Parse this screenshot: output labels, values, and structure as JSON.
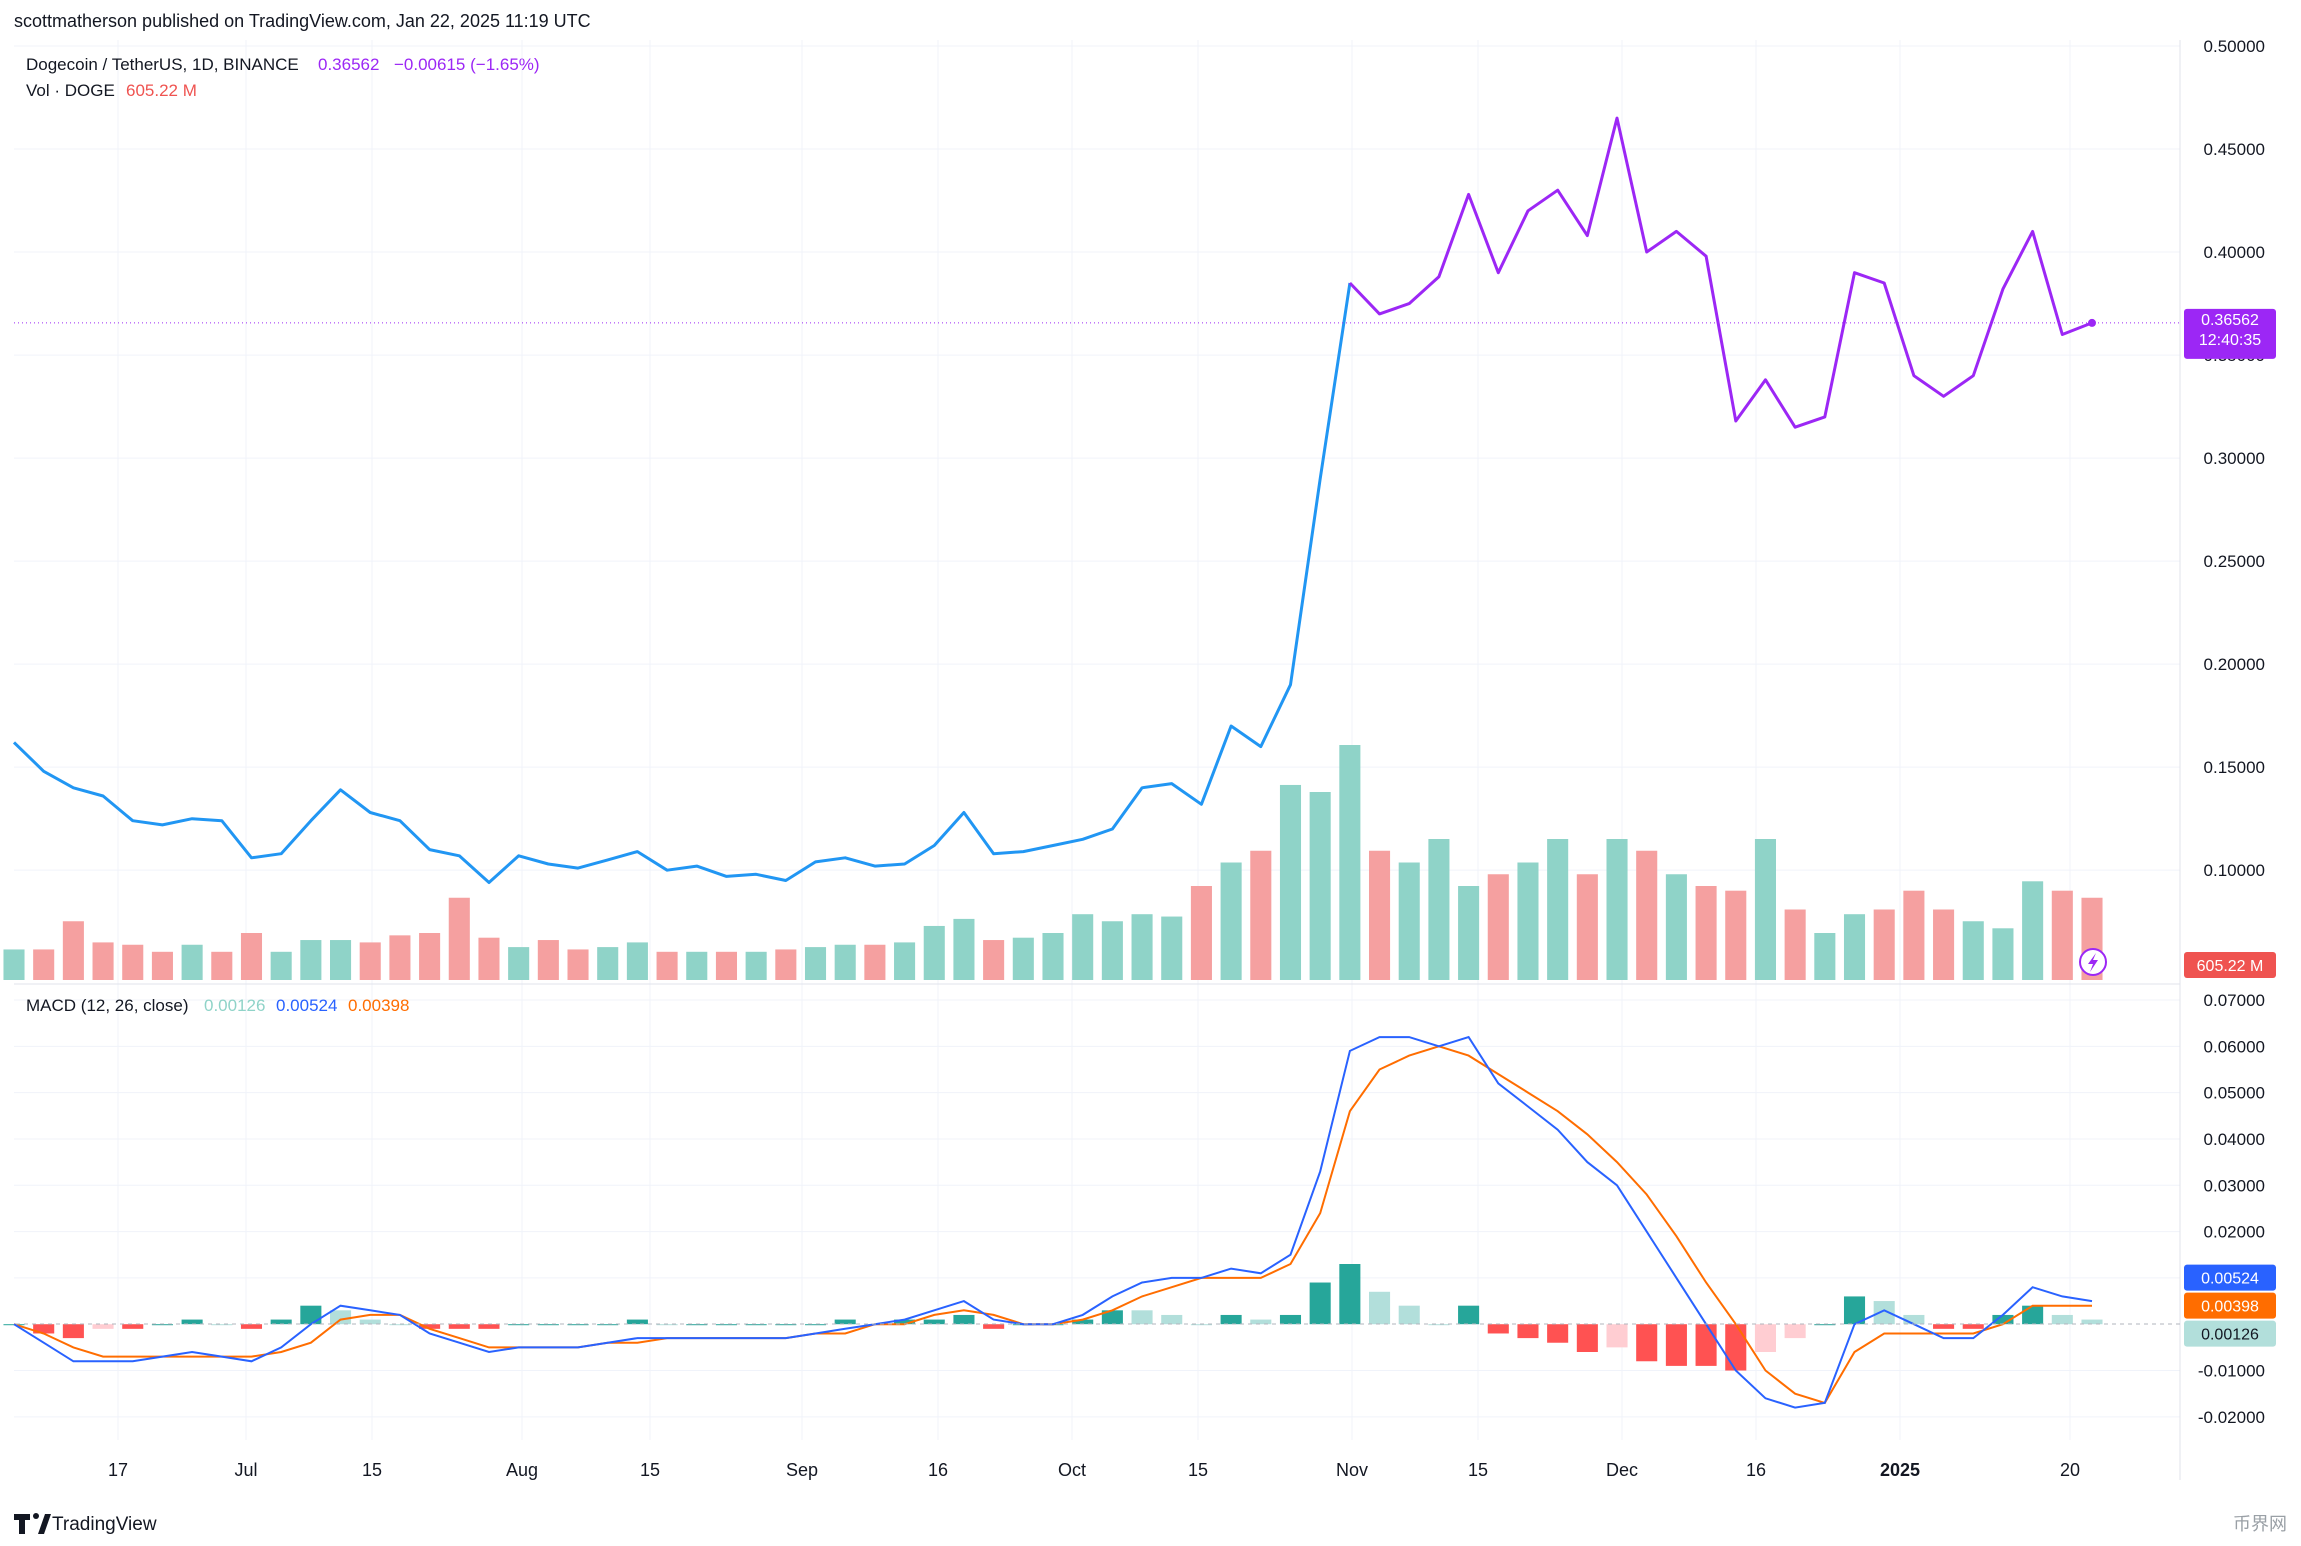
{
  "header": {
    "published": "scottmatherson published on TradingView.com, Jan 22, 2025 11:19 UTC"
  },
  "legend": {
    "symbol": "Dogecoin / TetherUS, 1D, BINANCE",
    "price": "0.36562",
    "change": "−0.00615 (−1.65%)",
    "vol_label": "Vol · DOGE",
    "vol_value": "605.22 M",
    "macd_label": "MACD (12, 26, close)",
    "macd_hist": "0.00126",
    "macd_line": "0.00524",
    "macd_signal": "0.00398"
  },
  "price_badge": {
    "price": "0.36562",
    "countdown": "12:40:35"
  },
  "vol_badge": "605.22 M",
  "macd_badges": {
    "macd": "0.00524",
    "signal": "0.00398",
    "hist": "0.00126"
  },
  "footer": {
    "brand": "TradingView",
    "watermark": "币界网"
  },
  "colors": {
    "price_old": "#2196f3",
    "price_new": "#9c27f5",
    "vol_up": "#8fd3c8",
    "vol_down": "#f5a0a0",
    "macd_line": "#2962ff",
    "signal_line": "#ff6d00",
    "hist_up_strong": "#26a69a",
    "hist_up_weak": "#b2dfdb",
    "hist_down_strong": "#ff5252",
    "hist_down_weak": "#ffcdd2"
  },
  "chart_data": [
    {
      "type": "line",
      "title": "Dogecoin / TetherUS, 1D, BINANCE",
      "x_ticks": [
        "17",
        "Jul",
        "15",
        "Aug",
        "15",
        "Sep",
        "16",
        "Oct",
        "15",
        "Nov",
        "15",
        "Dec",
        "16",
        "2025",
        "20"
      ],
      "y_ticks": [
        "0.10000",
        "0.15000",
        "0.20000",
        "0.25000",
        "0.30000",
        "0.35000",
        "0.40000",
        "0.45000",
        "0.50000"
      ],
      "ylim": [
        0.07,
        0.5
      ],
      "x": [
        "Jun 10",
        "Jun 13",
        "Jun 17",
        "Jun 20",
        "Jun 24",
        "Jun 27",
        "Jul 1",
        "Jul 4",
        "Jul 8",
        "Jul 11",
        "Jul 15",
        "Jul 18",
        "Jul 22",
        "Jul 25",
        "Jul 29",
        "Aug 1",
        "Aug 5",
        "Aug 8",
        "Aug 12",
        "Aug 15",
        "Aug 19",
        "Aug 22",
        "Aug 26",
        "Aug 29",
        "Sep 2",
        "Sep 5",
        "Sep 9",
        "Sep 12",
        "Sep 16",
        "Sep 19",
        "Sep 23",
        "Sep 26",
        "Sep 30",
        "Oct 3",
        "Oct 7",
        "Oct 10",
        "Oct 14",
        "Oct 17",
        "Oct 21",
        "Oct 24",
        "Oct 28",
        "Oct 31",
        "Nov 4",
        "Nov 7",
        "Nov 10",
        "Nov 12",
        "Nov 14",
        "Nov 17",
        "Nov 20",
        "Nov 23",
        "Nov 26",
        "Nov 29",
        "Dec 2",
        "Dec 5",
        "Dec 8",
        "Dec 11",
        "Dec 14",
        "Dec 17",
        "Dec 20",
        "Dec 23",
        "Dec 27",
        "Dec 30",
        "Jan 2",
        "Jan 5",
        "Jan 8",
        "Jan 11",
        "Jan 14",
        "Jan 17",
        "Jan 19",
        "Jan 21",
        "Jan 22"
      ],
      "values": [
        0.162,
        0.148,
        0.14,
        0.136,
        0.124,
        0.122,
        0.125,
        0.124,
        0.106,
        0.108,
        0.124,
        0.139,
        0.128,
        0.124,
        0.11,
        0.107,
        0.094,
        0.107,
        0.103,
        0.101,
        0.105,
        0.109,
        0.1,
        0.102,
        0.097,
        0.098,
        0.095,
        0.104,
        0.106,
        0.102,
        0.103,
        0.112,
        0.128,
        0.108,
        0.109,
        0.112,
        0.115,
        0.12,
        0.14,
        0.142,
        0.132,
        0.17,
        0.16,
        0.19,
        0.29,
        0.385,
        0.37,
        0.375,
        0.388,
        0.428,
        0.39,
        0.42,
        0.43,
        0.408,
        0.465,
        0.4,
        0.41,
        0.398,
        0.318,
        0.338,
        0.315,
        0.32,
        0.39,
        0.385,
        0.34,
        0.33,
        0.34,
        0.382,
        0.41,
        0.36,
        0.3656
      ],
      "series_colors": {
        "before_nov12": "#2196f3",
        "from_nov12": "#9c27f5"
      }
    },
    {
      "type": "bar",
      "name": "Vol · DOGE",
      "last": "605.22 M",
      "relative_values": [
        0.13,
        0.13,
        0.25,
        0.16,
        0.15,
        0.12,
        0.15,
        0.12,
        0.2,
        0.12,
        0.17,
        0.17,
        0.16,
        0.19,
        0.2,
        0.35,
        0.18,
        0.14,
        0.17,
        0.13,
        0.14,
        0.16,
        0.12,
        0.12,
        0.12,
        0.12,
        0.13,
        0.14,
        0.15,
        0.15,
        0.16,
        0.23,
        0.26,
        0.17,
        0.18,
        0.2,
        0.28,
        0.25,
        0.28,
        0.27,
        0.4,
        0.5,
        0.55,
        0.83,
        0.8,
        1.0,
        0.55,
        0.5,
        0.6,
        0.4,
        0.45,
        0.5,
        0.6,
        0.45,
        0.6,
        0.55,
        0.45,
        0.4,
        0.38,
        0.6,
        0.3,
        0.2,
        0.28,
        0.3,
        0.38,
        0.3,
        0.25,
        0.22,
        0.42,
        0.38,
        0.35
      ],
      "direction": [
        "up",
        "down",
        "down",
        "down",
        "down",
        "down",
        "up",
        "down",
        "down",
        "up",
        "up",
        "up",
        "down",
        "down",
        "down",
        "down",
        "down",
        "up",
        "down",
        "down",
        "up",
        "up",
        "down",
        "up",
        "down",
        "up",
        "down",
        "up",
        "up",
        "down",
        "up",
        "up",
        "up",
        "down",
        "up",
        "up",
        "up",
        "up",
        "up",
        "up",
        "down",
        "up",
        "down",
        "up",
        "up",
        "up",
        "down",
        "up",
        "up",
        "up",
        "down",
        "up",
        "up",
        "down",
        "up",
        "down",
        "up",
        "down",
        "down",
        "up",
        "down",
        "up",
        "up",
        "down",
        "down",
        "down",
        "up",
        "up",
        "up",
        "down",
        "down"
      ]
    },
    {
      "type": "line",
      "name": "MACD (12, 26, close)",
      "y_ticks": [
        "0.07000",
        "0.06000",
        "0.05000",
        "0.04000",
        "0.03000",
        "0.02000",
        "0.01000",
        "-0.01000",
        "-0.02000"
      ],
      "ylim": [
        -0.025,
        0.07
      ],
      "macd": [
        0.0,
        -0.004,
        -0.008,
        -0.008,
        -0.008,
        -0.007,
        -0.006,
        -0.007,
        -0.008,
        -0.005,
        0.0,
        0.004,
        0.003,
        0.002,
        -0.002,
        -0.004,
        -0.006,
        -0.005,
        -0.005,
        -0.005,
        -0.004,
        -0.003,
        -0.003,
        -0.003,
        -0.003,
        -0.003,
        -0.003,
        -0.002,
        -0.001,
        0.0,
        0.001,
        0.003,
        0.005,
        0.001,
        0.0,
        0.0,
        0.002,
        0.006,
        0.009,
        0.01,
        0.01,
        0.012,
        0.011,
        0.015,
        0.033,
        0.059,
        0.062,
        0.062,
        0.06,
        0.062,
        0.052,
        0.047,
        0.042,
        0.035,
        0.03,
        0.02,
        0.01,
        0.0,
        -0.01,
        -0.016,
        -0.018,
        -0.017,
        0.0,
        0.003,
        0.0,
        -0.003,
        -0.003,
        0.002,
        0.008,
        0.006,
        0.005
      ],
      "signal": [
        0.0,
        -0.002,
        -0.005,
        -0.007,
        -0.007,
        -0.007,
        -0.007,
        -0.007,
        -0.007,
        -0.006,
        -0.004,
        0.001,
        0.002,
        0.002,
        -0.001,
        -0.003,
        -0.005,
        -0.005,
        -0.005,
        -0.005,
        -0.004,
        -0.004,
        -0.003,
        -0.003,
        -0.003,
        -0.003,
        -0.003,
        -0.002,
        -0.002,
        0.0,
        0.0,
        0.002,
        0.003,
        0.002,
        0.0,
        0.0,
        0.001,
        0.003,
        0.006,
        0.008,
        0.01,
        0.01,
        0.01,
        0.013,
        0.024,
        0.046,
        0.055,
        0.058,
        0.06,
        0.058,
        0.054,
        0.05,
        0.046,
        0.041,
        0.035,
        0.028,
        0.019,
        0.009,
        0.0,
        -0.01,
        -0.015,
        -0.017,
        -0.006,
        -0.002,
        -0.002,
        -0.002,
        -0.002,
        0.0,
        0.004,
        0.004,
        0.004
      ],
      "histogram_color_key": "up_strong/up_weak/down_strong/down_weak"
    }
  ]
}
